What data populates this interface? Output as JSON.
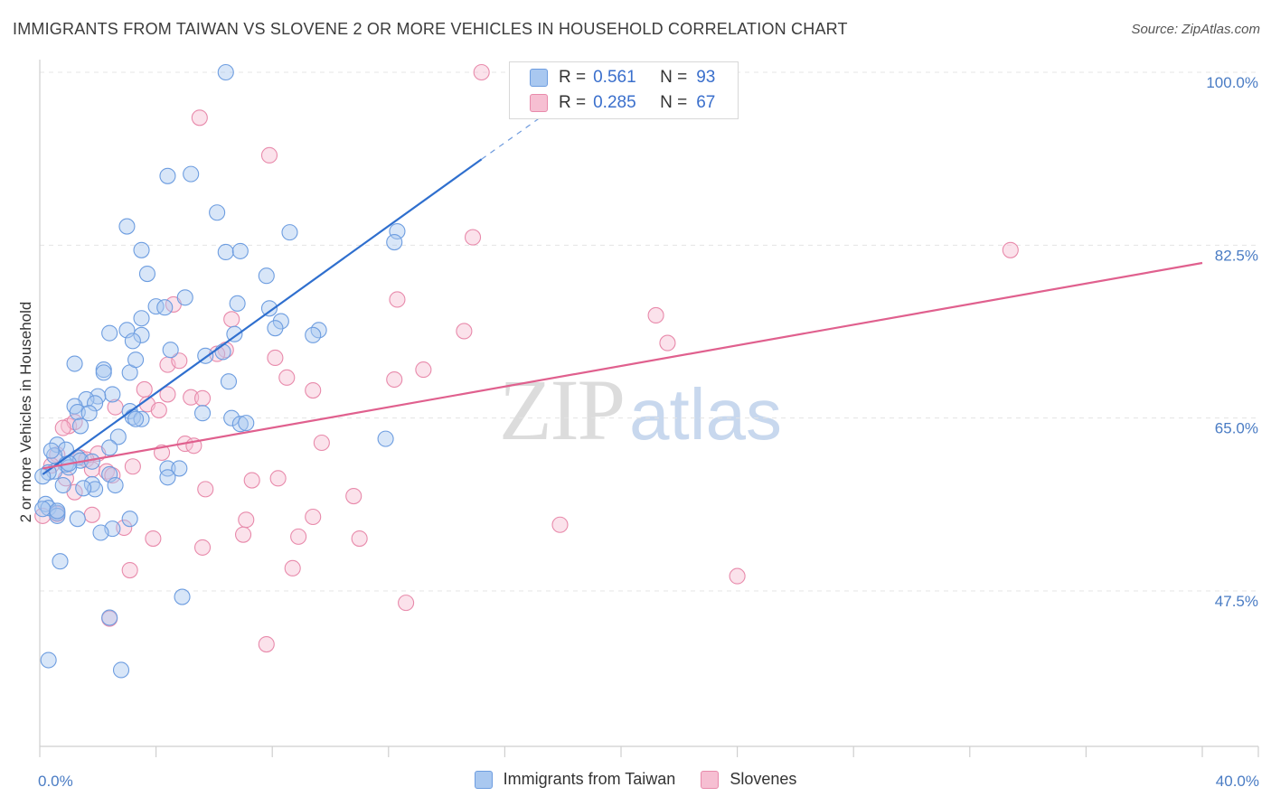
{
  "title": "IMMIGRANTS FROM TAIWAN VS SLOVENE 2 OR MORE VEHICLES IN HOUSEHOLD CORRELATION CHART",
  "source": "Source: ZipAtlas.com",
  "watermark": {
    "zip": "ZIP",
    "atlas": "atlas"
  },
  "legend_top": {
    "rows": [
      {
        "r_label": "R =",
        "r_value": "0.561",
        "n_label": "N =",
        "n_value": "93",
        "color": "#a9c8f0",
        "border": "#6d9de0"
      },
      {
        "r_label": "R =",
        "r_value": "0.285",
        "n_label": "N =",
        "n_value": "67",
        "color": "#f6bfd2",
        "border": "#e88aab"
      }
    ]
  },
  "chart_data": {
    "type": "scatter",
    "title": "IMMIGRANTS FROM TAIWAN VS SLOVENE 2 OR MORE VEHICLES IN HOUSEHOLD CORRELATION CHART",
    "xlabel": "",
    "ylabel": "2 or more Vehicles in Household",
    "xlim": [
      0,
      40
    ],
    "ylim": [
      32,
      100
    ],
    "x_tick_labels": [
      "0.0%",
      "40.0%"
    ],
    "y_ticks": [
      47.5,
      65.0,
      82.5,
      100.0
    ],
    "y_tick_labels": [
      "47.5%",
      "65.0%",
      "82.5%",
      "100.0%"
    ],
    "grid": true,
    "legend_position": "bottom",
    "series": [
      {
        "name": "Immigrants from Taiwan",
        "color": "#6d9de0",
        "fill": "#a9c8f0",
        "trend": {
          "x": [
            0.1,
            15.2
          ],
          "y": [
            59.3,
            91.2
          ],
          "dash_to": [
            17.5,
            96.0
          ],
          "color": "#2f6fce"
        },
        "points": [
          [
            6.4,
            100.0
          ],
          [
            4.4,
            89.5
          ],
          [
            5.2,
            89.7
          ],
          [
            3.0,
            84.4
          ],
          [
            6.1,
            85.8
          ],
          [
            8.6,
            83.8
          ],
          [
            12.3,
            83.9
          ],
          [
            12.2,
            82.8
          ],
          [
            3.5,
            82.0
          ],
          [
            6.4,
            81.8
          ],
          [
            6.9,
            81.9
          ],
          [
            3.7,
            79.6
          ],
          [
            7.8,
            79.4
          ],
          [
            5.0,
            77.2
          ],
          [
            4.0,
            76.3
          ],
          [
            4.3,
            76.2
          ],
          [
            6.8,
            76.6
          ],
          [
            7.9,
            76.1
          ],
          [
            3.5,
            75.1
          ],
          [
            8.3,
            74.8
          ],
          [
            2.4,
            73.6
          ],
          [
            3.0,
            73.9
          ],
          [
            3.5,
            73.4
          ],
          [
            6.7,
            73.5
          ],
          [
            8.1,
            74.1
          ],
          [
            9.6,
            73.9
          ],
          [
            9.4,
            73.4
          ],
          [
            3.2,
            72.8
          ],
          [
            4.5,
            71.9
          ],
          [
            5.7,
            71.3
          ],
          [
            6.3,
            71.7
          ],
          [
            1.2,
            70.5
          ],
          [
            2.2,
            69.9
          ],
          [
            2.2,
            69.6
          ],
          [
            3.1,
            69.6
          ],
          [
            3.3,
            70.9
          ],
          [
            6.5,
            68.7
          ],
          [
            2.5,
            67.4
          ],
          [
            2.0,
            67.2
          ],
          [
            1.6,
            66.9
          ],
          [
            1.9,
            66.5
          ],
          [
            1.2,
            66.2
          ],
          [
            1.3,
            65.6
          ],
          [
            1.7,
            65.5
          ],
          [
            3.1,
            65.7
          ],
          [
            3.2,
            65.1
          ],
          [
            3.5,
            64.9
          ],
          [
            5.6,
            65.5
          ],
          [
            6.6,
            65.0
          ],
          [
            6.9,
            64.4
          ],
          [
            7.1,
            64.5
          ],
          [
            1.4,
            64.2
          ],
          [
            2.7,
            63.1
          ],
          [
            11.9,
            62.9
          ],
          [
            0.6,
            62.3
          ],
          [
            0.9,
            61.8
          ],
          [
            0.5,
            61.2
          ],
          [
            1.3,
            61.0
          ],
          [
            1.4,
            60.7
          ],
          [
            0.9,
            60.3
          ],
          [
            1.0,
            60.0
          ],
          [
            1.8,
            60.6
          ],
          [
            0.5,
            59.6
          ],
          [
            0.3,
            59.5
          ],
          [
            0.1,
            59.1
          ],
          [
            4.4,
            59.9
          ],
          [
            4.8,
            59.9
          ],
          [
            4.4,
            59.0
          ],
          [
            2.4,
            59.3
          ],
          [
            0.8,
            58.2
          ],
          [
            2.6,
            58.2
          ],
          [
            1.8,
            58.3
          ],
          [
            1.9,
            57.8
          ],
          [
            0.2,
            56.3
          ],
          [
            0.3,
            55.9
          ],
          [
            0.1,
            55.8
          ],
          [
            0.6,
            55.4
          ],
          [
            0.6,
            55.1
          ],
          [
            1.3,
            54.8
          ],
          [
            3.1,
            54.8
          ],
          [
            2.5,
            53.8
          ],
          [
            2.1,
            53.4
          ],
          [
            0.7,
            50.5
          ],
          [
            4.9,
            46.9
          ],
          [
            2.4,
            44.8
          ],
          [
            0.3,
            40.5
          ],
          [
            2.8,
            39.5
          ],
          [
            0.6,
            55.6
          ],
          [
            1.0,
            60.4
          ],
          [
            3.3,
            64.9
          ],
          [
            2.4,
            62.0
          ],
          [
            0.4,
            61.7
          ],
          [
            1.5,
            57.9
          ]
        ]
      },
      {
        "name": "Slovenes",
        "color": "#e88aab",
        "fill": "#f6bfd2",
        "trend": {
          "x": [
            0.1,
            40.0
          ],
          "y": [
            59.9,
            80.7
          ],
          "color": "#e0608e"
        },
        "points": [
          [
            15.2,
            100.0
          ],
          [
            5.5,
            95.4
          ],
          [
            7.9,
            91.6
          ],
          [
            14.9,
            83.3
          ],
          [
            33.4,
            82.0
          ],
          [
            12.3,
            77.0
          ],
          [
            4.6,
            76.5
          ],
          [
            21.2,
            75.4
          ],
          [
            6.6,
            75.0
          ],
          [
            14.6,
            73.8
          ],
          [
            21.6,
            72.6
          ],
          [
            6.4,
            71.9
          ],
          [
            6.1,
            71.5
          ],
          [
            8.1,
            71.1
          ],
          [
            4.4,
            70.4
          ],
          [
            4.8,
            70.8
          ],
          [
            13.2,
            69.9
          ],
          [
            8.5,
            69.1
          ],
          [
            12.2,
            68.9
          ],
          [
            3.6,
            67.9
          ],
          [
            9.4,
            67.8
          ],
          [
            5.2,
            67.1
          ],
          [
            5.6,
            67.0
          ],
          [
            4.4,
            67.4
          ],
          [
            3.7,
            66.4
          ],
          [
            2.6,
            66.1
          ],
          [
            4.1,
            65.8
          ],
          [
            1.0,
            64.2
          ],
          [
            1.2,
            64.6
          ],
          [
            0.8,
            64.0
          ],
          [
            5.0,
            62.4
          ],
          [
            5.3,
            62.2
          ],
          [
            9.7,
            62.5
          ],
          [
            4.2,
            61.5
          ],
          [
            2.0,
            61.4
          ],
          [
            1.4,
            61.0
          ],
          [
            0.6,
            61.3
          ],
          [
            1.6,
            60.8
          ],
          [
            0.4,
            60.2
          ],
          [
            1.8,
            59.8
          ],
          [
            3.2,
            60.1
          ],
          [
            2.3,
            59.6
          ],
          [
            2.5,
            59.2
          ],
          [
            0.9,
            58.9
          ],
          [
            7.3,
            58.7
          ],
          [
            8.2,
            58.9
          ],
          [
            5.7,
            57.8
          ],
          [
            1.2,
            57.5
          ],
          [
            10.8,
            57.1
          ],
          [
            0.6,
            55.3
          ],
          [
            1.8,
            55.2
          ],
          [
            9.4,
            55.0
          ],
          [
            7.1,
            54.7
          ],
          [
            17.9,
            54.2
          ],
          [
            2.9,
            53.9
          ],
          [
            7.0,
            53.2
          ],
          [
            8.9,
            53.0
          ],
          [
            11.0,
            52.8
          ],
          [
            3.9,
            52.8
          ],
          [
            5.6,
            51.9
          ],
          [
            3.1,
            49.6
          ],
          [
            8.7,
            49.8
          ],
          [
            24.0,
            49.0
          ],
          [
            12.6,
            46.3
          ],
          [
            2.4,
            44.7
          ],
          [
            7.8,
            42.1
          ],
          [
            0.1,
            55.1
          ]
        ]
      }
    ]
  }
}
